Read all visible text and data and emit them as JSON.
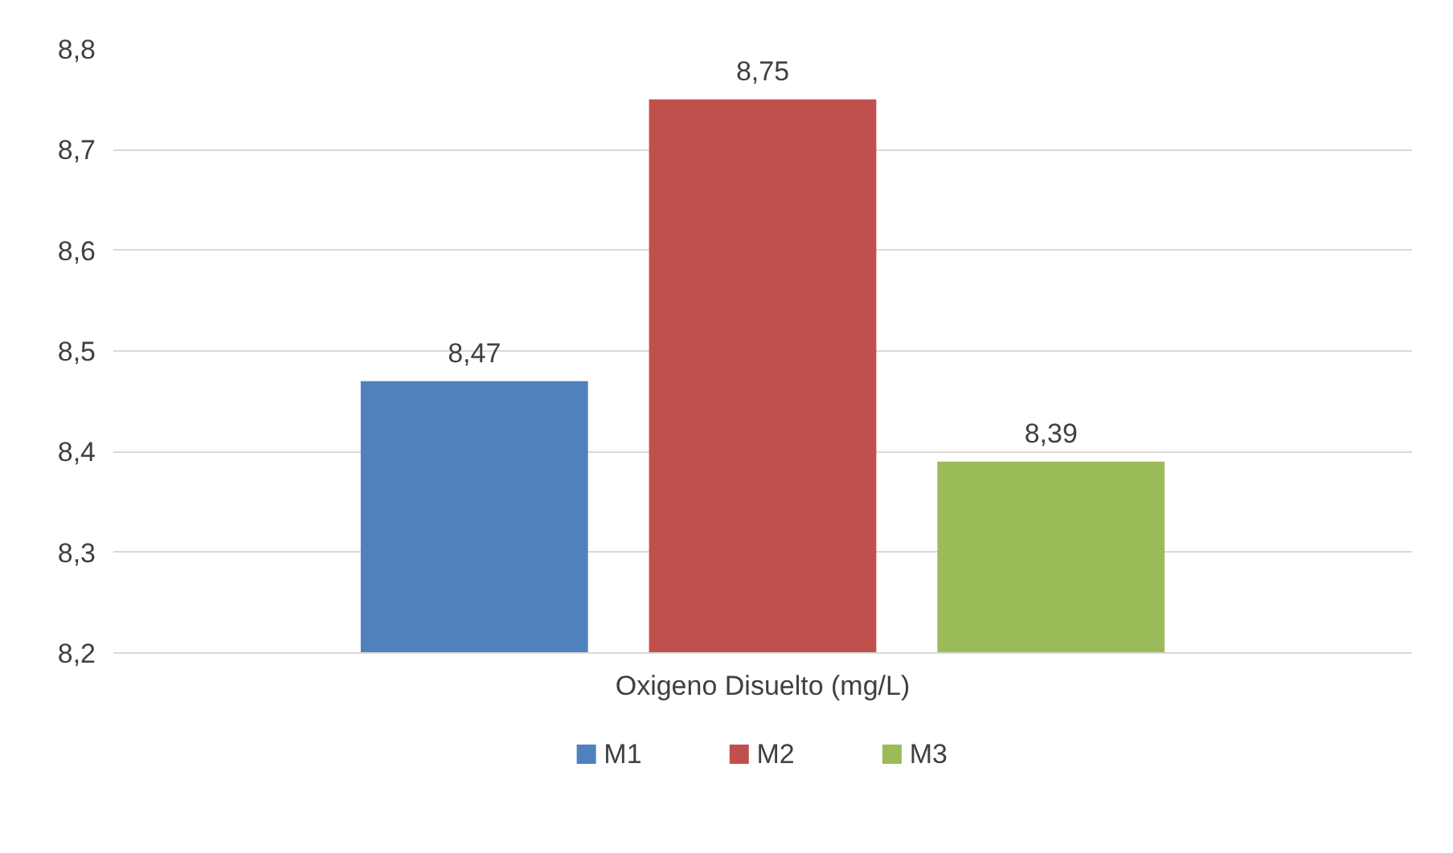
{
  "chart_data": {
    "type": "bar",
    "categories": [
      "Oxigeno Disuelto (mg/L)"
    ],
    "series": [
      {
        "name": "M1",
        "color": "#4f81bd",
        "values": [
          8.47
        ],
        "value_labels": [
          "8,47"
        ]
      },
      {
        "name": "M2",
        "color": "#c0504d",
        "values": [
          8.75
        ],
        "value_labels": [
          "8,75"
        ]
      },
      {
        "name": "M3",
        "color": "#9bbb59",
        "values": [
          8.39
        ],
        "value_labels": [
          "8,39"
        ]
      }
    ],
    "ylim": [
      8.2,
      8.8
    ],
    "yticks": [
      {
        "value": 8.2,
        "label": "8,2"
      },
      {
        "value": 8.3,
        "label": "8,3"
      },
      {
        "value": 8.4,
        "label": "8,4"
      },
      {
        "value": 8.5,
        "label": "8,5"
      },
      {
        "value": 8.6,
        "label": "8,6"
      },
      {
        "value": 8.7,
        "label": "8,7"
      },
      {
        "value": 8.8,
        "label": "8,8"
      }
    ],
    "grid": "y",
    "legend": "bottom"
  }
}
